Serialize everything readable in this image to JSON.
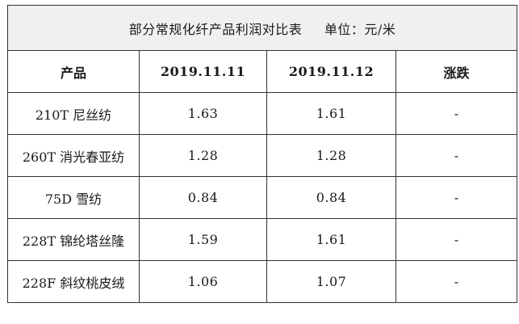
{
  "title": "部分常规化纤产品利润对比表",
  "unit": "单位：元/米",
  "headers": {
    "product": "产品",
    "date1": "2019.11.11",
    "date2": "2019.11.12",
    "change": "涨跌"
  },
  "rows": [
    {
      "product": "210T 尼丝纺",
      "d1": "1.63",
      "d2": "1.61",
      "change": "-"
    },
    {
      "product": "260T 消光春亚纺",
      "d1": "1.28",
      "d2": "1.28",
      "change": "-"
    },
    {
      "product": "75D 雪纺",
      "d1": "0.84",
      "d2": "0.84",
      "change": "-"
    },
    {
      "product": "228T 锦纶塔丝隆",
      "d1": "1.59",
      "d2": "1.61",
      "change": "-"
    },
    {
      "product": "228F 斜纹桃皮绒",
      "d1": "1.06",
      "d2": "1.07",
      "change": "-"
    }
  ]
}
